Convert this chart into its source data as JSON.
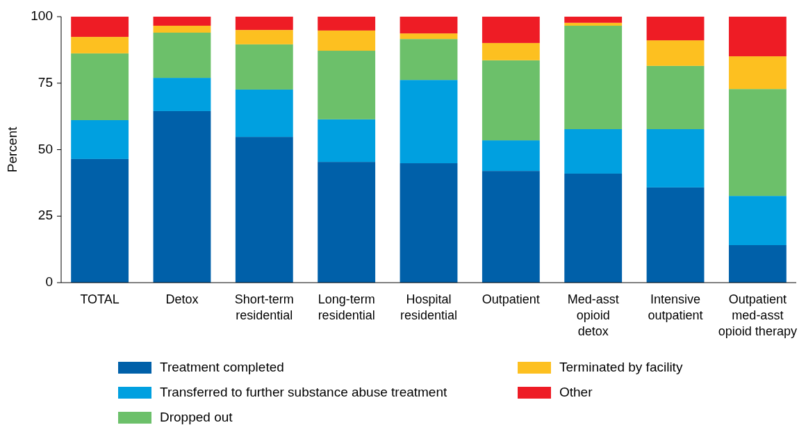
{
  "chart_data": {
    "type": "bar",
    "stacked": true,
    "ylabel": "Percent",
    "ylim": [
      0,
      100
    ],
    "yticks": [
      0,
      25,
      50,
      75,
      100
    ],
    "grid": false,
    "legend": "bottom",
    "categories": [
      "TOTAL",
      "Detox",
      "Short-term\nresidential",
      "Long-term\nresidential",
      "Hospital\nresidential",
      "Outpatient",
      "Med-asst\nopioid\ndetox",
      "Intensive\noutpatient",
      "Outpatient\nmed-asst\nopioid therapy"
    ],
    "series": [
      {
        "name": "Treatment completed",
        "color": "#0060a9",
        "values": [
          46.5,
          64.5,
          54.8,
          45.4,
          44.9,
          42.0,
          41.0,
          35.8,
          14.1
        ]
      },
      {
        "name": "Transferred to further substance abuse treatment",
        "color": "#00a0e0",
        "values": [
          14.6,
          12.5,
          17.8,
          16.0,
          31.3,
          11.5,
          16.7,
          21.9,
          18.5
        ]
      },
      {
        "name": "Dropped out",
        "color": "#6cc06a",
        "values": [
          25.1,
          17.0,
          17.0,
          25.8,
          15.4,
          30.1,
          38.9,
          23.8,
          40.2
        ]
      },
      {
        "name": "Terminated by facility",
        "color": "#fdc020",
        "values": [
          6.2,
          2.6,
          5.4,
          7.6,
          2.1,
          6.5,
          1.1,
          9.6,
          12.3
        ]
      },
      {
        "name": "Other",
        "color": "#ee1c25",
        "values": [
          7.6,
          3.4,
          5.0,
          5.2,
          6.3,
          9.9,
          2.3,
          8.9,
          14.9
        ]
      }
    ]
  }
}
